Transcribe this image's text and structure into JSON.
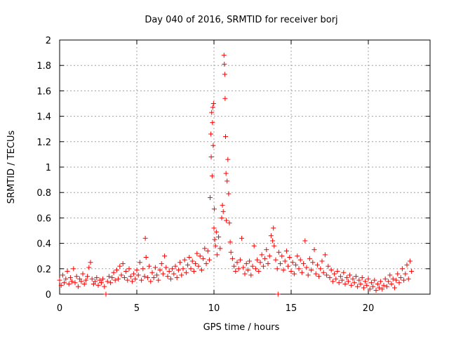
{
  "chart_data": {
    "type": "scatter",
    "title": "Day 040 of 2016, SRMTID for receiver borj",
    "xlabel": "GPS time / hours",
    "ylabel": "SRMTID / TECUs",
    "xlim": [
      0,
      24
    ],
    "ylim": [
      0,
      2
    ],
    "xticks": [
      0,
      5,
      10,
      15,
      20
    ],
    "xtick_labels": [
      "0",
      "5",
      "10",
      "15",
      "20"
    ],
    "yticks": [
      0,
      0.2,
      0.4,
      0.6,
      0.8,
      1,
      1.2,
      1.4,
      1.6,
      1.8,
      2
    ],
    "ytick_labels": [
      "0",
      "0.2",
      "0.4",
      "0.6",
      "0.8",
      "1",
      "1.2",
      "1.4",
      "1.6",
      "1.8",
      "2"
    ],
    "grid": true,
    "marker": "+",
    "series_color": "#ff0000",
    "series": [
      {
        "name": "SRMTID",
        "points": [
          [
            0.0,
            0.11
          ],
          [
            0.1,
            0.07
          ],
          [
            0.2,
            0.15
          ],
          [
            0.3,
            0.09
          ],
          [
            0.4,
            0.12
          ],
          [
            0.5,
            0.18
          ],
          [
            0.6,
            0.08
          ],
          [
            0.7,
            0.13
          ],
          [
            0.8,
            0.1
          ],
          [
            0.9,
            0.2
          ],
          [
            1.0,
            0.09
          ],
          [
            1.1,
            0.14
          ],
          [
            1.2,
            0.06
          ],
          [
            1.3,
            0.12
          ],
          [
            1.4,
            0.1
          ],
          [
            1.5,
            0.16
          ],
          [
            1.6,
            0.08
          ],
          [
            1.7,
            0.11
          ],
          [
            1.8,
            0.14
          ],
          [
            1.9,
            0.21
          ],
          [
            2.0,
            0.25
          ],
          [
            2.1,
            0.12
          ],
          [
            2.2,
            0.08
          ],
          [
            2.3,
            0.1
          ],
          [
            2.4,
            0.13
          ],
          [
            2.5,
            0.07
          ],
          [
            2.6,
            0.11
          ],
          [
            2.7,
            0.09
          ],
          [
            2.8,
            0.12
          ],
          [
            2.9,
            0.06
          ],
          [
            3.0,
            0.0
          ],
          [
            3.1,
            0.1
          ],
          [
            3.2,
            0.14
          ],
          [
            3.3,
            0.09
          ],
          [
            3.4,
            0.13
          ],
          [
            3.5,
            0.17
          ],
          [
            3.6,
            0.11
          ],
          [
            3.7,
            0.19
          ],
          [
            3.8,
            0.12
          ],
          [
            3.9,
            0.22
          ],
          [
            4.0,
            0.15
          ],
          [
            4.1,
            0.24
          ],
          [
            4.2,
            0.13
          ],
          [
            4.3,
            0.18
          ],
          [
            4.4,
            0.11
          ],
          [
            4.5,
            0.2
          ],
          [
            4.6,
            0.14
          ],
          [
            4.7,
            0.1
          ],
          [
            4.8,
            0.16
          ],
          [
            4.9,
            0.12
          ],
          [
            5.0,
            0.19
          ],
          [
            5.1,
            0.15
          ],
          [
            5.2,
            0.25
          ],
          [
            5.3,
            0.11
          ],
          [
            5.4,
            0.2
          ],
          [
            5.5,
            0.14
          ],
          [
            5.55,
            0.44
          ],
          [
            5.6,
            0.29
          ],
          [
            5.7,
            0.13
          ],
          [
            5.8,
            0.22
          ],
          [
            5.9,
            0.1
          ],
          [
            6.0,
            0.17
          ],
          [
            6.1,
            0.13
          ],
          [
            6.2,
            0.21
          ],
          [
            6.3,
            0.15
          ],
          [
            6.4,
            0.11
          ],
          [
            6.5,
            0.19
          ],
          [
            6.6,
            0.24
          ],
          [
            6.7,
            0.16
          ],
          [
            6.8,
            0.3
          ],
          [
            6.9,
            0.21
          ],
          [
            7.0,
            0.14
          ],
          [
            7.1,
            0.18
          ],
          [
            7.2,
            0.12
          ],
          [
            7.3,
            0.2
          ],
          [
            7.4,
            0.16
          ],
          [
            7.5,
            0.22
          ],
          [
            7.6,
            0.13
          ],
          [
            7.7,
            0.19
          ],
          [
            7.8,
            0.25
          ],
          [
            7.9,
            0.15
          ],
          [
            8.0,
            0.2
          ],
          [
            8.1,
            0.27
          ],
          [
            8.2,
            0.17
          ],
          [
            8.3,
            0.23
          ],
          [
            8.4,
            0.29
          ],
          [
            8.5,
            0.2
          ],
          [
            8.6,
            0.26
          ],
          [
            8.7,
            0.18
          ],
          [
            8.8,
            0.24
          ],
          [
            8.9,
            0.32
          ],
          [
            9.0,
            0.22
          ],
          [
            9.1,
            0.3
          ],
          [
            9.2,
            0.19
          ],
          [
            9.3,
            0.28
          ],
          [
            9.4,
            0.36
          ],
          [
            9.5,
            0.24
          ],
          [
            9.6,
            0.34
          ],
          [
            9.7,
            0.27
          ],
          [
            9.75,
            0.76
          ],
          [
            9.8,
            1.26
          ],
          [
            9.82,
            1.08
          ],
          [
            9.85,
            1.43
          ],
          [
            9.88,
            0.93
          ],
          [
            9.9,
            1.35
          ],
          [
            9.92,
            1.47
          ],
          [
            9.95,
            1.17
          ],
          [
            9.97,
            1.5
          ],
          [
            10.0,
            0.52
          ],
          [
            10.02,
            0.67
          ],
          [
            10.05,
            0.43
          ],
          [
            10.1,
            0.38
          ],
          [
            10.15,
            0.49
          ],
          [
            10.2,
            0.31
          ],
          [
            10.3,
            0.45
          ],
          [
            10.4,
            0.36
          ],
          [
            10.5,
            0.6
          ],
          [
            10.55,
            0.7
          ],
          [
            10.6,
            0.65
          ],
          [
            10.65,
            1.88
          ],
          [
            10.67,
            1.81
          ],
          [
            10.7,
            1.73
          ],
          [
            10.72,
            1.54
          ],
          [
            10.75,
            1.24
          ],
          [
            10.78,
            0.95
          ],
          [
            10.8,
            0.58
          ],
          [
            10.85,
            0.89
          ],
          [
            10.9,
            1.06
          ],
          [
            10.95,
            0.79
          ],
          [
            11.0,
            0.56
          ],
          [
            11.05,
            0.41
          ],
          [
            11.1,
            0.33
          ],
          [
            11.2,
            0.28
          ],
          [
            11.3,
            0.22
          ],
          [
            11.4,
            0.18
          ],
          [
            11.5,
            0.25
          ],
          [
            11.6,
            0.2
          ],
          [
            11.7,
            0.27
          ],
          [
            11.8,
            0.44
          ],
          [
            11.9,
            0.21
          ],
          [
            12.0,
            0.16
          ],
          [
            12.1,
            0.24
          ],
          [
            12.2,
            0.19
          ],
          [
            12.3,
            0.26
          ],
          [
            12.4,
            0.15
          ],
          [
            12.5,
            0.22
          ],
          [
            12.6,
            0.38
          ],
          [
            12.7,
            0.2
          ],
          [
            12.8,
            0.27
          ],
          [
            12.9,
            0.18
          ],
          [
            13.0,
            0.25
          ],
          [
            13.1,
            0.31
          ],
          [
            13.2,
            0.22
          ],
          [
            13.3,
            0.28
          ],
          [
            13.4,
            0.35
          ],
          [
            13.5,
            0.24
          ],
          [
            13.6,
            0.3
          ],
          [
            13.7,
            0.46
          ],
          [
            13.8,
            0.42
          ],
          [
            13.85,
            0.52
          ],
          [
            13.9,
            0.38
          ],
          [
            14.0,
            0.27
          ],
          [
            14.1,
            0.2
          ],
          [
            14.15,
            0.0
          ],
          [
            14.2,
            0.33
          ],
          [
            14.3,
            0.24
          ],
          [
            14.4,
            0.3
          ],
          [
            14.5,
            0.19
          ],
          [
            14.6,
            0.26
          ],
          [
            14.7,
            0.34
          ],
          [
            14.8,
            0.22
          ],
          [
            14.9,
            0.29
          ],
          [
            15.0,
            0.18
          ],
          [
            15.1,
            0.25
          ],
          [
            15.2,
            0.16
          ],
          [
            15.3,
            0.23
          ],
          [
            15.4,
            0.3
          ],
          [
            15.5,
            0.2
          ],
          [
            15.6,
            0.27
          ],
          [
            15.7,
            0.17
          ],
          [
            15.8,
            0.24
          ],
          [
            15.9,
            0.42
          ],
          [
            16.0,
            0.21
          ],
          [
            16.1,
            0.15
          ],
          [
            16.2,
            0.28
          ],
          [
            16.3,
            0.19
          ],
          [
            16.4,
            0.25
          ],
          [
            16.5,
            0.35
          ],
          [
            16.6,
            0.16
          ],
          [
            16.7,
            0.23
          ],
          [
            16.8,
            0.14
          ],
          [
            16.9,
            0.2
          ],
          [
            17.0,
            0.26
          ],
          [
            17.1,
            0.17
          ],
          [
            17.2,
            0.31
          ],
          [
            17.3,
            0.15
          ],
          [
            17.4,
            0.22
          ],
          [
            17.5,
            0.13
          ],
          [
            17.6,
            0.19
          ],
          [
            17.7,
            0.1
          ],
          [
            17.8,
            0.16
          ],
          [
            17.9,
            0.12
          ],
          [
            18.0,
            0.18
          ],
          [
            18.1,
            0.09
          ],
          [
            18.2,
            0.14
          ],
          [
            18.3,
            0.11
          ],
          [
            18.4,
            0.17
          ],
          [
            18.5,
            0.08
          ],
          [
            18.6,
            0.13
          ],
          [
            18.7,
            0.1
          ],
          [
            18.8,
            0.15
          ],
          [
            18.9,
            0.07
          ],
          [
            19.0,
            0.12
          ],
          [
            19.1,
            0.09
          ],
          [
            19.2,
            0.14
          ],
          [
            19.3,
            0.06
          ],
          [
            19.4,
            0.11
          ],
          [
            19.5,
            0.08
          ],
          [
            19.6,
            0.13
          ],
          [
            19.7,
            0.05
          ],
          [
            19.8,
            0.1
          ],
          [
            19.9,
            0.07
          ],
          [
            20.0,
            0.12
          ],
          [
            20.1,
            0.04
          ],
          [
            20.2,
            0.09
          ],
          [
            20.3,
            0.06
          ],
          [
            20.4,
            0.11
          ],
          [
            20.5,
            0.03
          ],
          [
            20.6,
            0.08
          ],
          [
            20.7,
            0.05
          ],
          [
            20.8,
            0.1
          ],
          [
            20.9,
            0.04
          ],
          [
            21.0,
            0.07
          ],
          [
            21.1,
            0.12
          ],
          [
            21.2,
            0.06
          ],
          [
            21.3,
            0.1
          ],
          [
            21.4,
            0.15
          ],
          [
            21.5,
            0.08
          ],
          [
            21.6,
            0.12
          ],
          [
            21.7,
            0.05
          ],
          [
            21.8,
            0.11
          ],
          [
            21.9,
            0.16
          ],
          [
            22.0,
            0.09
          ],
          [
            22.1,
            0.13
          ],
          [
            22.2,
            0.2
          ],
          [
            22.3,
            0.11
          ],
          [
            22.4,
            0.16
          ],
          [
            22.5,
            0.23
          ],
          [
            22.6,
            0.12
          ],
          [
            22.7,
            0.26
          ],
          [
            22.8,
            0.18
          ]
        ]
      }
    ]
  }
}
